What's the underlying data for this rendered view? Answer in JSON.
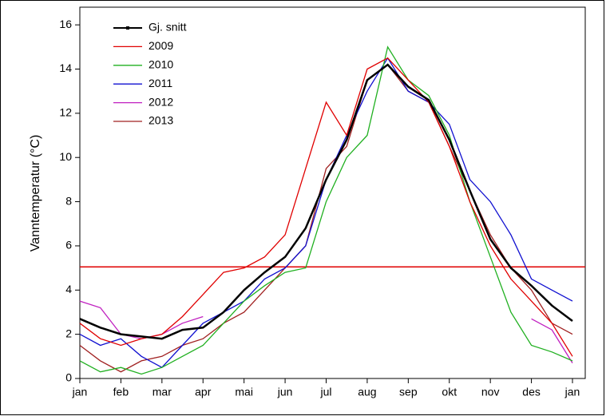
{
  "chart_data": {
    "type": "line",
    "y_label": "Vanntemperatur (°C)",
    "categories": [
      "jan",
      null,
      "feb",
      null,
      "mar",
      null,
      "apr",
      null,
      "mai",
      null,
      "jun",
      null,
      "jul",
      null,
      "aug",
      null,
      "sep",
      null,
      "okt",
      null,
      "nov",
      null,
      "des",
      null,
      "jan"
    ],
    "series": [
      {
        "name": "Gj. snitt",
        "color": "#000000",
        "values": [
          2.7,
          2.3,
          2.0,
          1.9,
          1.8,
          2.2,
          2.3,
          3.0,
          4.0,
          4.8,
          5.5,
          6.8,
          9.0,
          10.8,
          13.5,
          14.2,
          13.2,
          12.6,
          10.8,
          8.5,
          6.3,
          5.0,
          4.2,
          3.3,
          2.6
        ]
      },
      {
        "name": "2009",
        "color": "#e00000",
        "values": [
          2.5,
          1.8,
          1.5,
          1.8,
          2.0,
          2.8,
          3.8,
          4.8,
          5.0,
          5.5,
          6.5,
          9.5,
          12.5,
          11.0,
          14.0,
          14.5,
          13.5,
          12.5,
          10.5,
          8.0,
          6.0,
          4.5,
          3.5,
          2.5,
          1.0
        ]
      },
      {
        "name": "2010",
        "color": "#20b020",
        "values": [
          0.8,
          0.3,
          0.5,
          0.2,
          0.5,
          1.0,
          1.5,
          2.5,
          3.5,
          4.2,
          4.8,
          5.0,
          8.0,
          10.0,
          11.0,
          15.0,
          13.5,
          12.8,
          11.0,
          8.0,
          5.5,
          3.0,
          1.5,
          1.2,
          0.8
        ]
      },
      {
        "name": "2011",
        "color": "#1010d0",
        "values": [
          2.0,
          1.5,
          1.8,
          1.0,
          0.5,
          1.5,
          2.5,
          3.0,
          3.5,
          4.5,
          5.0,
          6.0,
          9.0,
          11.0,
          13.0,
          14.5,
          13.0,
          12.5,
          11.5,
          9.0,
          8.0,
          6.5,
          4.5,
          4.0,
          3.5
        ]
      },
      {
        "name": "2012",
        "color": "#c020c0",
        "values": [
          3.5,
          3.2,
          2.0,
          1.8,
          2.0,
          2.5,
          2.8,
          null,
          null,
          null,
          null,
          null,
          null,
          null,
          null,
          null,
          null,
          null,
          null,
          null,
          null,
          null,
          2.7,
          2.2,
          0.7
        ]
      },
      {
        "name": "2013",
        "color": "#a02020",
        "values": [
          1.5,
          0.8,
          0.3,
          0.8,
          1.0,
          1.5,
          1.8,
          2.5,
          3.0,
          4.0,
          5.0,
          6.0,
          9.5,
          10.5,
          13.5,
          14.2,
          13.0,
          12.5,
          10.5,
          8.5,
          6.5,
          5.0,
          4.0,
          2.5,
          2.0
        ]
      }
    ],
    "reference_line": {
      "value": 5.05,
      "color": "#e00000"
    },
    "ylim": [
      0,
      16.8
    ],
    "yticks": [
      0,
      2,
      4,
      6,
      8,
      10,
      12,
      14,
      16
    ],
    "legend": "upper left"
  }
}
